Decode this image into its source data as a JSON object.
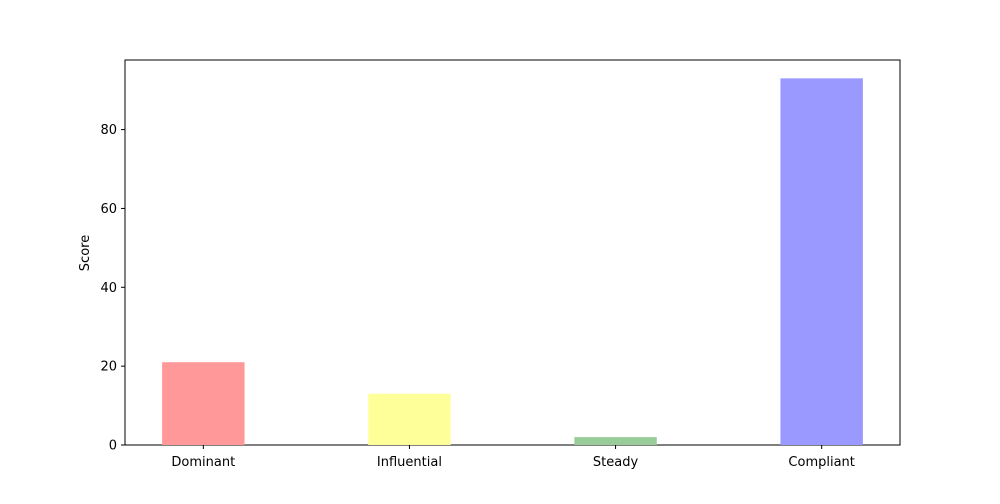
{
  "chart_data": {
    "type": "bar",
    "title": "",
    "xlabel": "",
    "ylabel": "Score",
    "categories": [
      "Dominant",
      "Influential",
      "Steady",
      "Compliant"
    ],
    "values": [
      21,
      13,
      2,
      93
    ],
    "colors": [
      "#ff9999",
      "#ffff99",
      "#99cc99",
      "#9999ff"
    ],
    "ylim": [
      0,
      97.65
    ],
    "yticks": [
      0,
      20,
      40,
      60,
      80
    ],
    "grid": false,
    "legend": "none"
  }
}
